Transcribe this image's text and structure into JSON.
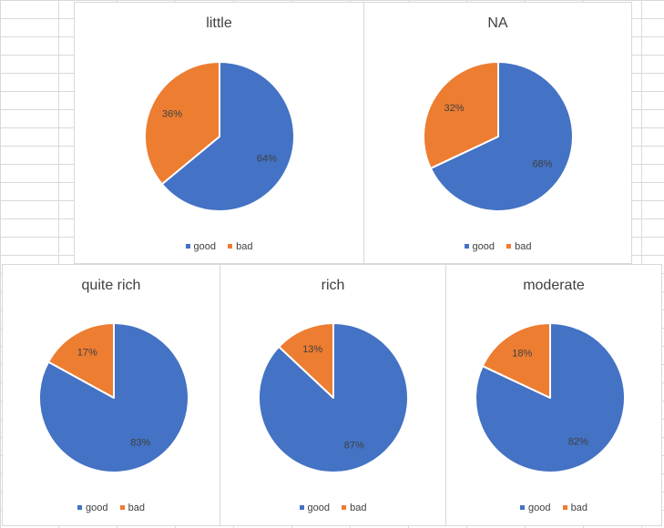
{
  "colors": {
    "good": "#4472c4",
    "bad": "#ed7d31"
  },
  "legend": [
    "good",
    "bad"
  ],
  "chart_data": [
    {
      "type": "pie",
      "title": "little",
      "categories": [
        "good",
        "bad"
      ],
      "values": [
        64,
        36
      ],
      "labels": [
        "64%",
        "36%"
      ],
      "legend_position": "bottom"
    },
    {
      "type": "pie",
      "title": "NA",
      "categories": [
        "good",
        "bad"
      ],
      "values": [
        68,
        32
      ],
      "labels": [
        "68%",
        "32%"
      ],
      "legend_position": "bottom"
    },
    {
      "type": "pie",
      "title": "quite rich",
      "categories": [
        "good",
        "bad"
      ],
      "values": [
        83,
        17
      ],
      "labels": [
        "83%",
        "17%"
      ],
      "legend_position": "bottom"
    },
    {
      "type": "pie",
      "title": "rich",
      "categories": [
        "good",
        "bad"
      ],
      "values": [
        87,
        13
      ],
      "labels": [
        "87%",
        "13%"
      ],
      "legend_position": "bottom"
    },
    {
      "type": "pie",
      "title": "moderate",
      "categories": [
        "good",
        "bad"
      ],
      "values": [
        82,
        18
      ],
      "labels": [
        "82%",
        "18%"
      ],
      "legend_position": "bottom"
    }
  ]
}
